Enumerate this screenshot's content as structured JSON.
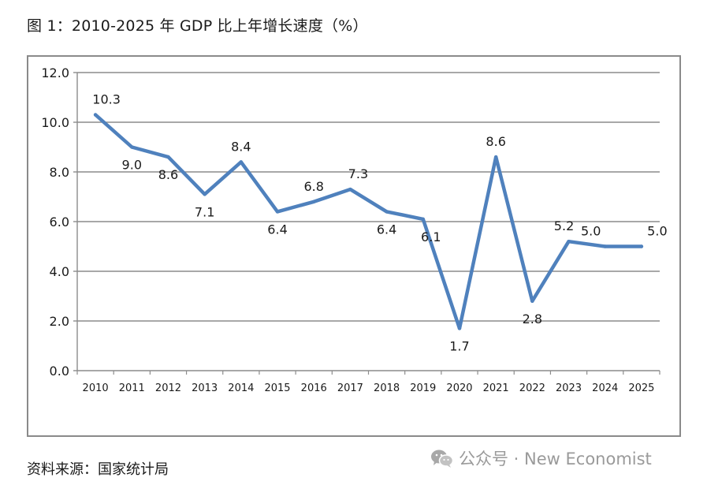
{
  "title": "图 1：2010-2025 年 GDP 比上年增长速度（%）",
  "source": "资料来源：国家统计局",
  "watermark": {
    "icon": "wechat-icon",
    "text": "公众号 · New Economist"
  },
  "colors": {
    "line": "#4f81bd",
    "grid": "#8c8c8c",
    "axis": "#8c8c8c",
    "text": "#1a1a1a",
    "frame": "#8a8a8a"
  },
  "chart_data": {
    "type": "line",
    "title": "",
    "xlabel": "",
    "ylabel": "",
    "x": [
      "2010",
      "2011",
      "2012",
      "2013",
      "2014",
      "2015",
      "2016",
      "2017",
      "2018",
      "2019",
      "2020",
      "2021",
      "2022",
      "2023",
      "2024",
      "2025"
    ],
    "series": [
      {
        "name": "GDP比上年增长速度",
        "values": [
          10.3,
          9.0,
          8.6,
          7.1,
          8.4,
          6.4,
          6.8,
          7.3,
          6.4,
          6.1,
          1.7,
          8.6,
          2.8,
          5.2,
          5.0,
          5.0
        ],
        "labels": [
          "10.3",
          "9.0",
          "8.6",
          "7.1",
          "8.4",
          "6.4",
          "6.8",
          "7.3",
          "6.4",
          "6.1",
          "1.7",
          "8.6",
          "2.8",
          "5.2",
          "5.0",
          "5.0"
        ]
      }
    ],
    "ylim": [
      0,
      12
    ],
    "yticks": [
      "0.0",
      "2.0",
      "4.0",
      "6.0",
      "8.0",
      "10.0",
      "12.0"
    ],
    "grid": true,
    "legend": "none"
  }
}
